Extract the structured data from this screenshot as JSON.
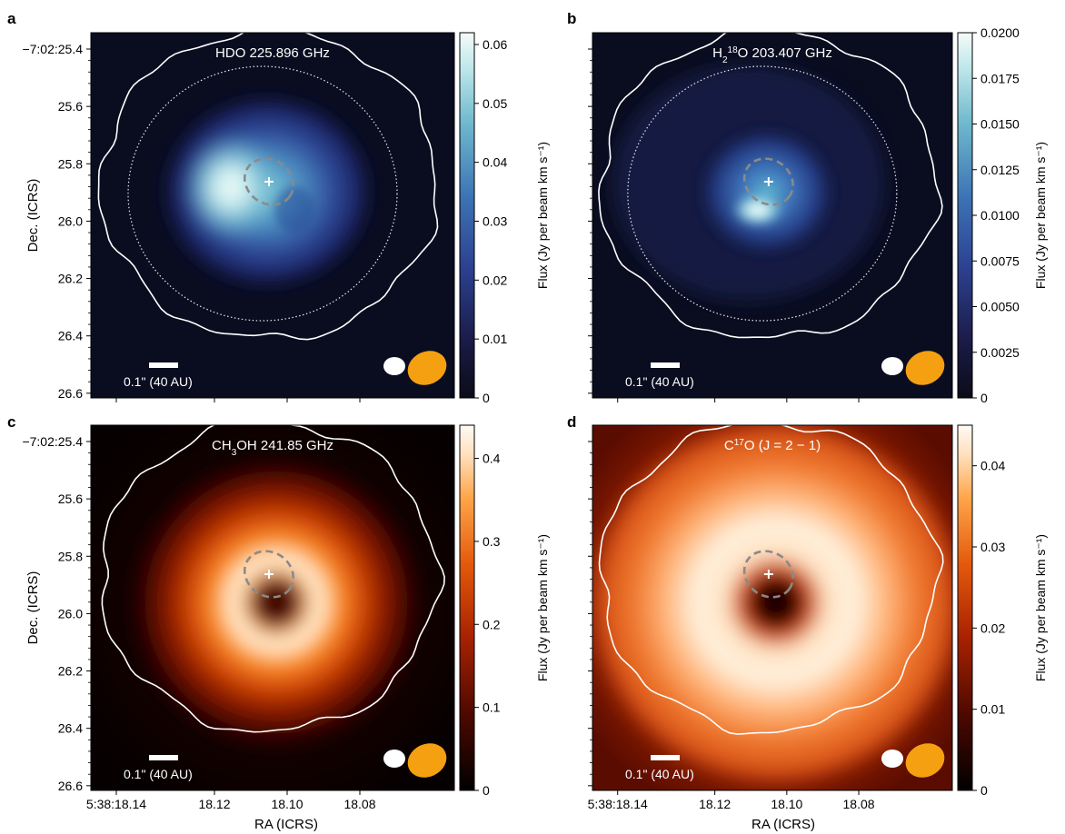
{
  "figure": {
    "xlabel": "RA (ICRS)",
    "ylabel": "Dec. (ICRS)"
  },
  "chart_data": [
    {
      "type": "heatmap",
      "panel_letter": "a",
      "title": "HDO 225.896 GHz",
      "title_parts": [
        {
          "t": "HDO 225.896 GHz",
          "s": "n"
        }
      ],
      "colormap": "dark-blue-cyan-white",
      "colorbar_label": "Flux (Jy per beam km s⁻¹)",
      "colorbar_range": [
        0,
        0.062
      ],
      "colorbar_ticks": [
        "0",
        "0.01",
        "0.02",
        "0.03",
        "0.04",
        "0.05",
        "0.06"
      ],
      "ytick_labels": [
        "−7:02:25.4",
        "25.6",
        "25.8",
        "26.0",
        "26.2",
        "26.4",
        "26.6"
      ],
      "xtick_labels": [],
      "scale_bar_label": "0.1\" (40 AU)",
      "emission": "ring peaking on the left side, central dip",
      "colors": {
        "beam_small": "#ffffff",
        "beam_large": "#f5a011",
        "contour": "#ffffff",
        "inner_ring": "#8a8a8a"
      }
    },
    {
      "type": "heatmap",
      "panel_letter": "b",
      "title": "H2 18O 203.407 GHz",
      "title_parts": [
        {
          "t": "H",
          "s": "n"
        },
        {
          "t": "2",
          "s": "sub"
        },
        {
          "t": "18",
          "s": "sup"
        },
        {
          "t": "O 203.407 GHz",
          "s": "n"
        }
      ],
      "colormap": "dark-blue-cyan-white",
      "colorbar_label": "Flux (Jy per beam km s⁻¹)",
      "colorbar_range": [
        0,
        0.02
      ],
      "colorbar_ticks": [
        "0",
        "0.0025",
        "0.0050",
        "0.0075",
        "0.0100",
        "0.0125",
        "0.0150",
        "0.0175",
        "0.0200"
      ],
      "ytick_labels": [],
      "xtick_labels": [],
      "scale_bar_label": "0.1\" (40 AU)",
      "emission": "compact clumpy emission around centre",
      "colors": {
        "beam_small": "#ffffff",
        "beam_large": "#f5a011",
        "contour": "#ffffff",
        "inner_ring": "#8a8a8a"
      }
    },
    {
      "type": "heatmap",
      "panel_letter": "c",
      "title": "CH3OH 241.85 GHz",
      "title_parts": [
        {
          "t": "CH",
          "s": "n"
        },
        {
          "t": "3",
          "s": "sub"
        },
        {
          "t": "OH 241.85 GHz",
          "s": "n"
        }
      ],
      "colormap": "black-red-orange-white",
      "colorbar_label": "Flux (Jy per beam km s⁻¹)",
      "colorbar_range": [
        0,
        0.44
      ],
      "colorbar_ticks": [
        "0",
        "0.1",
        "0.2",
        "0.3",
        "0.4"
      ],
      "ytick_labels": [
        "−7:02:25.4",
        "25.6",
        "25.8",
        "26.0",
        "26.2",
        "26.4",
        "26.6"
      ],
      "xtick_labels": [
        "5:38:18.14",
        "18.12",
        "18.10",
        "18.08"
      ],
      "scale_bar_label": "0.1\" (40 AU)",
      "emission": "bright ring with dark centre",
      "colors": {
        "beam_small": "#ffffff",
        "beam_large": "#f5a011",
        "contour": "#ffffff",
        "inner_ring": "#8a8a8a"
      }
    },
    {
      "type": "heatmap",
      "panel_letter": "d",
      "title": "C17O (J = 2 − 1)",
      "title_parts": [
        {
          "t": "C",
          "s": "n"
        },
        {
          "t": "17",
          "s": "sup"
        },
        {
          "t": "O (J = 2 − 1)",
          "s": "n"
        }
      ],
      "colormap": "black-red-orange-white",
      "colorbar_label": "Flux (Jy per beam km s⁻¹)",
      "colorbar_range": [
        0,
        0.045
      ],
      "colorbar_ticks": [
        "0",
        "0.01",
        "0.02",
        "0.03",
        "0.04"
      ],
      "ytick_labels": [],
      "xtick_labels": [
        "5:38:18.14",
        "18.12",
        "18.10",
        "18.08"
      ],
      "scale_bar_label": "0.1\" (40 AU)",
      "emission": "broad extended ring with dark centre",
      "colors": {
        "beam_small": "#ffffff",
        "beam_large": "#f5a011",
        "contour": "#ffffff",
        "inner_ring": "#8a8a8a"
      }
    }
  ]
}
